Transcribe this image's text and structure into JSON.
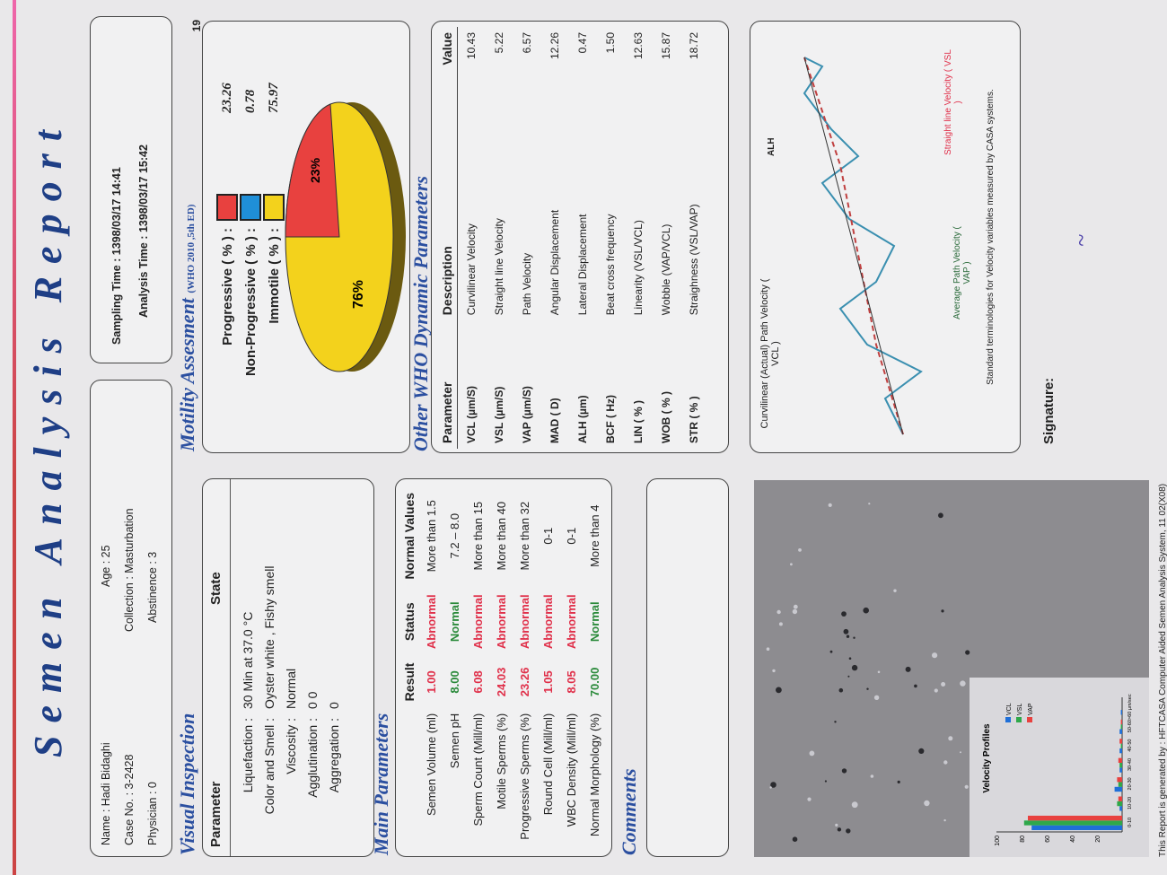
{
  "report": {
    "title": "Semen Analysis Report",
    "patient": {
      "name": "Name : Hadi Bidaghi",
      "case_no": "Case No. : 3-2428",
      "physician": "Physician : 0",
      "age": "Age : 25",
      "collection": "Collection : Masturbation",
      "abstinence": "Abstinence : 3"
    },
    "times": {
      "sampling": "Sampling Time : 1398/03/17  14:41",
      "analysis": "Analysis Time : 1398/03/17  15:42"
    },
    "visual": {
      "title": "Visual Inspection",
      "col_parameter": "Parameter",
      "col_state": "State",
      "rows": [
        {
          "label": "Liquefaction :",
          "value": "30 Min at 37.0 °C"
        },
        {
          "label": "Color and Smell :",
          "value": "Oyster white   ,   Fishy smell"
        },
        {
          "label": "Viscosity :",
          "value": "Normal"
        },
        {
          "label": "Agglutination :",
          "value": "0  0"
        },
        {
          "label": "Aggregation :",
          "value": "0"
        }
      ]
    },
    "main": {
      "title": "Main Parameters",
      "headers": [
        "",
        "Result",
        "Status",
        "Normal Values"
      ],
      "rows": [
        {
          "name": "Semen Volume (ml)",
          "result": "1.00",
          "status": "Abnormal",
          "normal": "More than 1.5"
        },
        {
          "name": "Semen pH",
          "result": "8.00",
          "status": "Normal",
          "normal": "7.2 – 8.0"
        },
        {
          "name": "Sperm Count (Mill/ml)",
          "result": "6.08",
          "status": "Abnormal",
          "normal": "More than 15"
        },
        {
          "name": "Motile Sperms (%)",
          "result": "24.03",
          "status": "Abnormal",
          "normal": "More than 40"
        },
        {
          "name": "Progressive Sperms (%)",
          "result": "23.26",
          "status": "Abnormal",
          "normal": "More than 32"
        },
        {
          "name": "Round Cell (Mill/ml)",
          "result": "1.05",
          "status": "Abnormal",
          "normal": "0-1"
        },
        {
          "name": "WBC Density (Mill/ml)",
          "result": "8.05",
          "status": "Abnormal",
          "normal": "0-1"
        },
        {
          "name": "Normal Morphology (%)",
          "result": "70.00",
          "status": "Normal",
          "normal": "More than 4"
        }
      ]
    },
    "comments": {
      "title": "Comments"
    },
    "motility": {
      "title": "Motility Assesment",
      "subtitle": "(WHO 2010 ,5th ED)",
      "items": [
        {
          "label": "Progressive ( % ) :",
          "value": "23.26",
          "color": "#e8413f"
        },
        {
          "label": "Non-Progressive ( % ) :",
          "value": "0.78",
          "color": "#1f8fd8"
        },
        {
          "label": "Immotile ( % ) :",
          "value": "75.97",
          "color": "#f3d21c"
        }
      ],
      "pie_label_small": "23%",
      "pie_label_large": "76%",
      "edge_label": "19"
    },
    "dynamic": {
      "title": "Other WHO Dynamic Parameters",
      "headers": [
        "Parameter",
        "Description",
        "Value"
      ],
      "rows": [
        {
          "p": "VCL  (µm/S)",
          "d": "Curvilinear Velocity",
          "v": "10.43"
        },
        {
          "p": "VSL  (µm/S)",
          "d": "Straight line Velocity",
          "v": "5.22"
        },
        {
          "p": "VAP  (µm/S)",
          "d": "Path Velocity",
          "v": "6.57"
        },
        {
          "p": "MAD ( D)",
          "d": "Angular Displacement",
          "v": "12.26"
        },
        {
          "p": "ALH  (µm)",
          "d": "Lateral Displacement",
          "v": "0.47"
        },
        {
          "p": "BCF  ( Hz)",
          "d": "Beat cross frequency",
          "v": "1.50"
        },
        {
          "p": "LIN  ( % )",
          "d": "Linearity (VSL/VCL)",
          "v": "12.63"
        },
        {
          "p": "WOB  ( % )",
          "d": "Wobble  (VAP/VCL)",
          "v": "15.87"
        },
        {
          "p": "STR  ( % )",
          "d": "Straighness (VSL/VAP)",
          "v": "18.72"
        }
      ]
    },
    "diagram": {
      "vcl_label": "Curvilinear (Actual) Path Velocity ( VCL )",
      "alh_label": "ALH",
      "vap_label": "Average Path Velocity ( VAP )",
      "vsl_label": "Straight line Velocity ( VSL )",
      "caption": "Standard terminologies for Velocity variables measured by CASA systems."
    },
    "velocity": {
      "title": "Velocity Profiles",
      "y_ticks": [
        "100",
        "80",
        "60",
        "40",
        "20"
      ],
      "x_ticks": [
        "0-10",
        "10-20",
        "20-30",
        "30-40",
        "40-50",
        "50-60",
        ">60  µm/sec"
      ],
      "legend": [
        {
          "name": "VCL",
          "color": "#1f6fd8"
        },
        {
          "name": "VSL",
          "color": "#2fa84a"
        },
        {
          "name": "VAP",
          "color": "#e8413f"
        }
      ]
    },
    "signature": "Signature:",
    "footer": "This Report is generated by : HFTCASA Computer Aided Semen Analysis System,  11 02(X08)"
  },
  "chart_data": {
    "type": "bar",
    "title": "Velocity Profiles",
    "categories": [
      "0-10",
      "10-20",
      "20-30",
      "30-40",
      "40-50",
      "50-60",
      ">60  µm/sec"
    ],
    "ylim": [
      0,
      100
    ],
    "series": [
      {
        "name": "VCL",
        "values": [
          72,
          2,
          6,
          2,
          2,
          2,
          1
        ]
      },
      {
        "name": "VSL",
        "values": [
          78,
          4,
          3,
          2,
          1,
          1,
          0
        ]
      },
      {
        "name": "VAP",
        "values": [
          75,
          3,
          4,
          3,
          2,
          1,
          0
        ]
      }
    ]
  }
}
